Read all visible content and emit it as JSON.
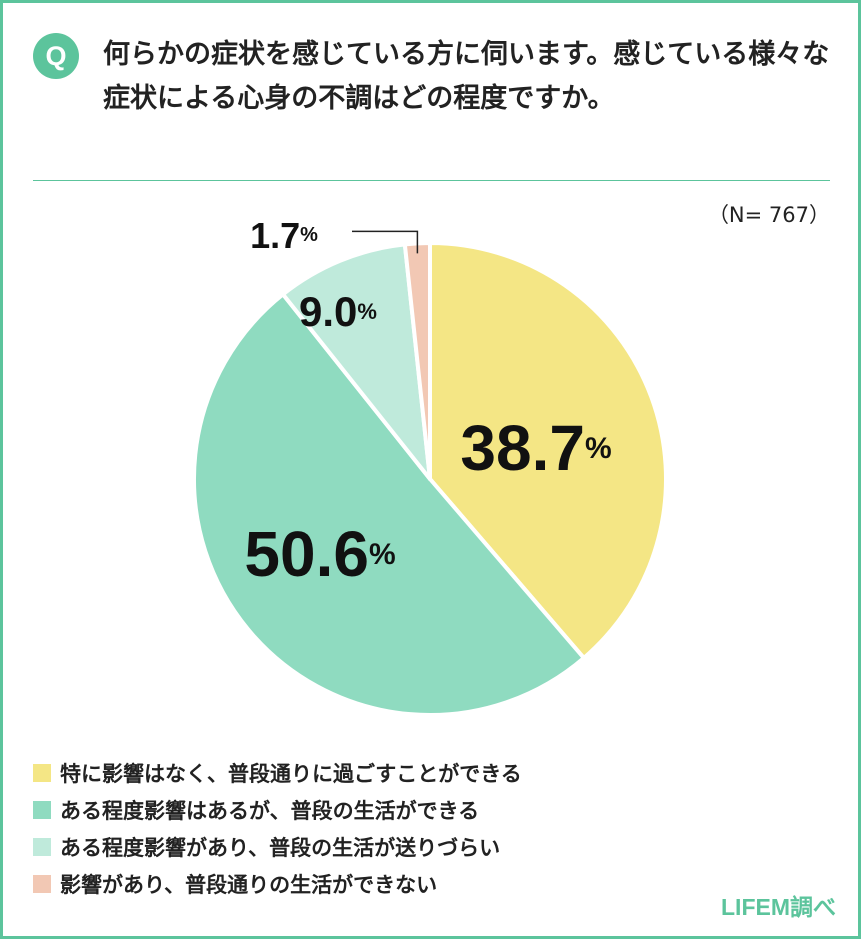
{
  "badge": "Q",
  "question": "何らかの症状を感じている方に伺います。感じている様々な症状による心身の不調はどの程度ですか。",
  "sample_size": "（N= 767）",
  "source": "LIFEM調べ",
  "chart_data": {
    "type": "pie",
    "start": "12 o'clock, clockwise",
    "unit": "%",
    "categories": [
      "特に影響はなく、普段通りに過ごすことができる",
      "ある程度影響はあるが、普段の生活ができる",
      "ある程度影響があり、普段の生活が送りづらい",
      "影響があり、普段通りの生活ができない"
    ],
    "values": [
      38.7,
      50.6,
      9.0,
      1.7
    ],
    "value_labels": [
      "38.7",
      "50.6",
      "9.0",
      "1.7"
    ],
    "colors": [
      "#f4e685",
      "#8fdbc0",
      "#bfeadb",
      "#f2c8b4"
    ],
    "legend_position": "bottom"
  }
}
